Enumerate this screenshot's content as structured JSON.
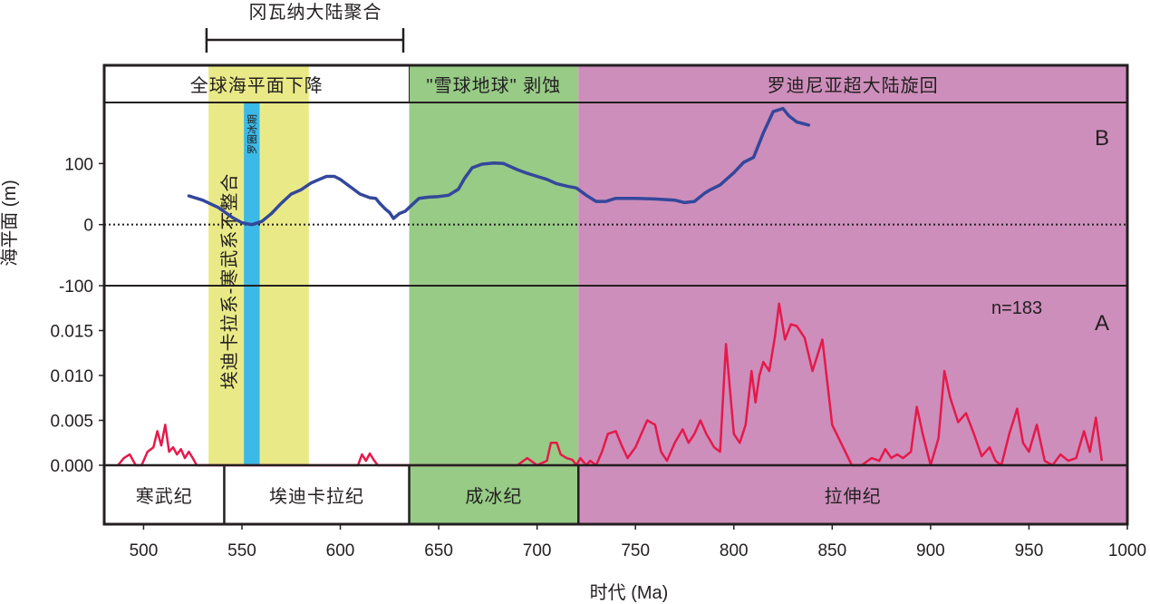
{
  "chart_data": {
    "type": "line",
    "xlabel": "时代 (Ma)",
    "ylabel": "海平面 (m)",
    "xlim": [
      480,
      1000
    ],
    "x_ticks": [
      "500",
      "550",
      "600",
      "650",
      "700",
      "750",
      "800",
      "850",
      "900",
      "950",
      "1000"
    ],
    "top_annotation": "冈瓦纳大陆聚合",
    "top_annotation_range": [
      532,
      632
    ],
    "events": [
      {
        "label": "全球海平面下降",
        "range": [
          480,
          635
        ]
      },
      {
        "label": "\"雪球地球\"  剥蚀",
        "range": [
          635,
          721
        ]
      },
      {
        "label": "罗迪尼亚超大陆旋回",
        "range": [
          721,
          1000
        ]
      }
    ],
    "shaded_bands": [
      {
        "label": "埃迪卡拉系-寒武系不整合",
        "range": [
          533,
          584
        ],
        "color": "#e9ea87"
      },
      {
        "label": "罗圈冰期",
        "range": [
          551,
          559
        ],
        "color": "#3cb9e6"
      },
      {
        "label": "",
        "range": [
          635,
          721
        ],
        "color": "#97cb86"
      },
      {
        "label": "",
        "range": [
          721,
          1000
        ],
        "color": "#cd8ebb"
      }
    ],
    "periods": [
      {
        "label": "寒武纪",
        "range": [
          480,
          541
        ],
        "color": "#ffffff"
      },
      {
        "label": "埃迪卡拉纪",
        "range": [
          541,
          635
        ],
        "color": "#ffffff"
      },
      {
        "label": "成冰纪",
        "range": [
          635,
          721
        ],
        "color": "#97cb86"
      },
      {
        "label": "拉伸纪",
        "range": [
          721,
          1000
        ],
        "color": "#cd8ebb"
      }
    ],
    "panel_B": {
      "label": "B",
      "ylabel": "海平面 (m)",
      "ylim": [
        -100,
        200
      ],
      "y_ticks": [
        "100",
        "0",
        "-100"
      ],
      "zero_line": "dotted",
      "series": [
        {
          "color": "#33479b",
          "x": [
            523,
            530,
            538,
            545,
            550,
            555,
            560,
            565,
            570,
            575,
            580,
            585,
            590,
            593,
            597,
            600,
            605,
            610,
            615,
            618,
            620,
            623,
            625,
            627,
            630,
            633,
            635,
            640,
            645,
            650,
            655,
            660,
            663,
            667,
            672,
            678,
            683,
            690,
            695,
            700,
            705,
            710,
            715,
            720,
            725,
            730,
            735,
            740,
            750,
            760,
            770,
            775,
            780,
            785,
            788,
            793,
            800,
            805,
            810,
            815,
            820,
            825,
            828,
            832,
            838
          ],
          "y": [
            47,
            40,
            28,
            12,
            3,
            0,
            5,
            18,
            35,
            50,
            57,
            68,
            75,
            79,
            79,
            74,
            62,
            50,
            44,
            43,
            35,
            25,
            20,
            10,
            18,
            22,
            28,
            43,
            45,
            46,
            48,
            58,
            75,
            93,
            99,
            101,
            100,
            90,
            84,
            79,
            74,
            67,
            63,
            60,
            48,
            38,
            38,
            43,
            43,
            42,
            40,
            36,
            38,
            51,
            57,
            65,
            85,
            102,
            110,
            150,
            185,
            190,
            178,
            168,
            163
          ]
        }
      ]
    },
    "panel_A": {
      "label": "A",
      "annotation": "n=183",
      "ylim": [
        0,
        0.02
      ],
      "y_ticks": [
        "0.000",
        "0.005",
        "0.010",
        "0.015"
      ],
      "series": [
        {
          "color": "#e6194b",
          "x": [
            487,
            490,
            493,
            496,
            499,
            502,
            505,
            507,
            509,
            511,
            513,
            515,
            517,
            519,
            521,
            523,
            525,
            527,
            530,
            609,
            611,
            613,
            615,
            617,
            619,
            623,
            625,
            627,
            670,
            690,
            695,
            700,
            705,
            707,
            710,
            712,
            715,
            718,
            720,
            722,
            725,
            727,
            730,
            733,
            736,
            740,
            743,
            746,
            750,
            753,
            756,
            760,
            763,
            766,
            770,
            774,
            777,
            780,
            783,
            786,
            790,
            793,
            796,
            800,
            803,
            806,
            809,
            811,
            813,
            815,
            818,
            821,
            823,
            826,
            829,
            832,
            836,
            840,
            845,
            850,
            860,
            865,
            870,
            874,
            877,
            880,
            883,
            886,
            890,
            893,
            896,
            900,
            904,
            907,
            910,
            914,
            918,
            922,
            926,
            930,
            933,
            936,
            940,
            944,
            947,
            950,
            954,
            958,
            962,
            966,
            970,
            974,
            978,
            981,
            984,
            987
          ],
          "y": [
            0,
            0.0008,
            0.0012,
            0,
            0,
            0.0015,
            0.002,
            0.0038,
            0.0022,
            0.0045,
            0.0015,
            0.002,
            0.0012,
            0.0018,
            0.0008,
            0.0015,
            0.0008,
            0,
            0,
            0,
            0.0012,
            0.0005,
            0.0013,
            0.0006,
            0,
            0,
            0,
            0,
            0,
            0,
            0.0008,
            0,
            0.0005,
            0.0025,
            0.0025,
            0.0012,
            0.0008,
            0.0006,
            0,
            0.0008,
            0,
            0.0005,
            0,
            0.0015,
            0.0035,
            0.0038,
            0.0022,
            0.0008,
            0.002,
            0.0035,
            0.005,
            0.0045,
            0.0015,
            0.0005,
            0.0025,
            0.004,
            0.0025,
            0.0035,
            0.005,
            0.0035,
            0.002,
            0.0015,
            0.0135,
            0.0035,
            0.0025,
            0.0045,
            0.0105,
            0.007,
            0.01,
            0.0115,
            0.0105,
            0.0145,
            0.018,
            0.014,
            0.0157,
            0.0155,
            0.0142,
            0.0105,
            0.014,
            0.0045,
            0,
            0,
            0.0008,
            0.0005,
            0.0018,
            0.0008,
            0.0012,
            0.0008,
            0.0015,
            0.0065,
            0.0035,
            0,
            0.003,
            0.0105,
            0.0075,
            0.0048,
            0.0058,
            0.0035,
            0.001,
            0.002,
            0.0005,
            0,
            0.0035,
            0.0063,
            0.0025,
            0.0015,
            0.0045,
            0.0005,
            0,
            0.0012,
            0.0005,
            0.0008,
            0.0038,
            0.0015,
            0.0053,
            0.0005
          ]
        }
      ]
    }
  }
}
